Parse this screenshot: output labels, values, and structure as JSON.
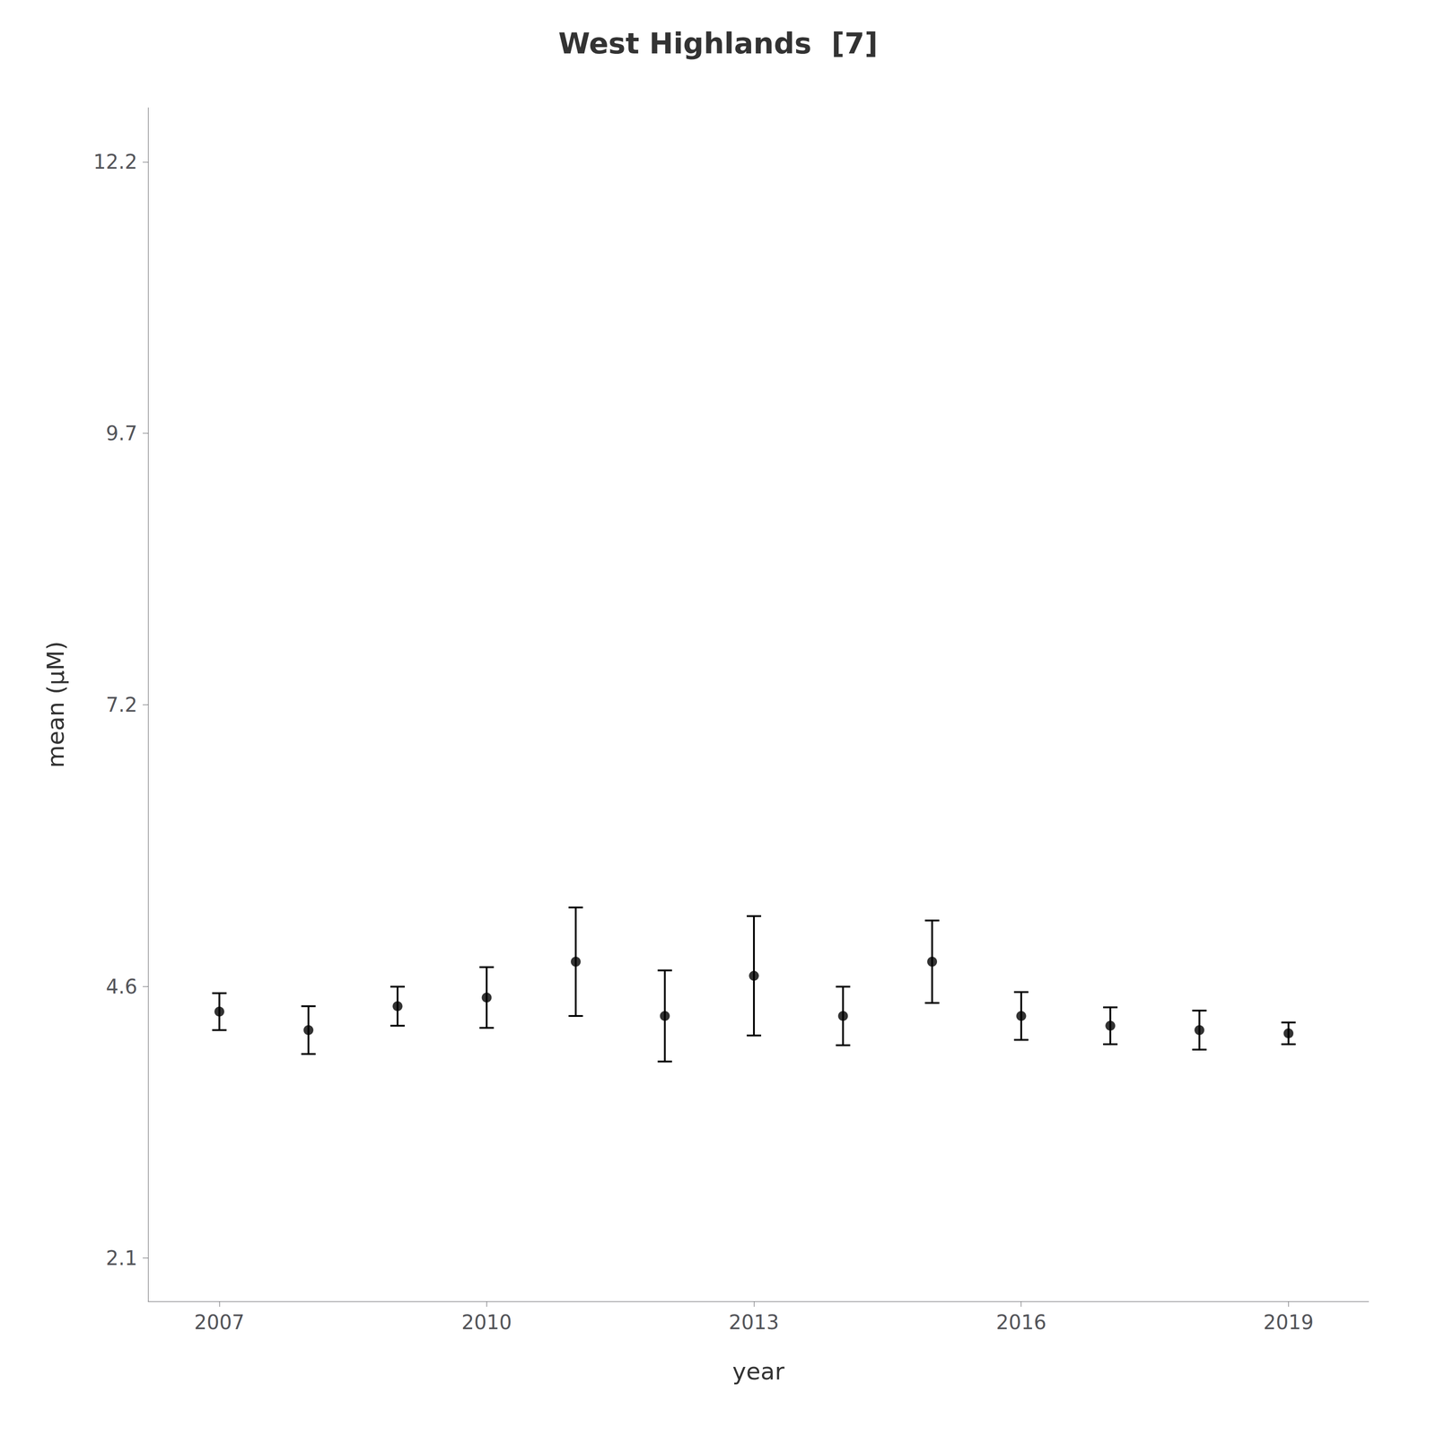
{
  "chart_data": {
    "type": "scatter",
    "title": "West Highlands  [7]",
    "xlabel": "year",
    "ylabel": "mean (μM)",
    "x": [
      2007,
      2008,
      2009,
      2010,
      2011,
      2012,
      2013,
      2014,
      2015,
      2016,
      2017,
      2018,
      2019
    ],
    "values": [
      4.37,
      4.2,
      4.42,
      4.5,
      4.83,
      4.33,
      4.7,
      4.33,
      4.83,
      4.33,
      4.24,
      4.2,
      4.17
    ],
    "errors": [
      0.17,
      0.22,
      0.18,
      0.28,
      0.5,
      0.42,
      0.55,
      0.27,
      0.38,
      0.22,
      0.17,
      0.18,
      0.1
    ],
    "xlim": [
      2006.2,
      2019.9
    ],
    "xticks": [
      2007,
      2010,
      2013,
      2016,
      2019
    ],
    "ylim": [
      1.7,
      12.7
    ],
    "yticks": [
      2.1,
      4.6,
      7.2,
      9.7,
      12.2
    ],
    "color": "black",
    "grid": false
  }
}
